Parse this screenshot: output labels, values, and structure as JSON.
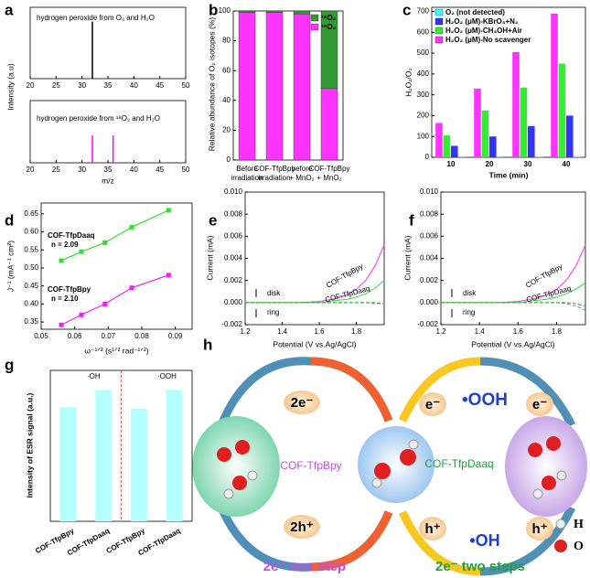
{
  "chart_data": [
    {
      "panel": "a",
      "type": "stem",
      "ylabel": "Intensity (a.u)",
      "annotation": "hydrogen peroxide from O₂ and H₂O",
      "annotation_color": "#000000",
      "color": "#000000",
      "x": [
        32,
        40
      ],
      "values": [
        1,
        0.03
      ],
      "xlim": [
        20,
        50
      ],
      "xticks": [
        20,
        25,
        30,
        35,
        40,
        45,
        50
      ],
      "ylim": [
        0,
        1.25
      ]
    },
    {
      "type": "stem",
      "xlabel": "m/z",
      "annotation": "hydrogen peroxide from ¹⁸O₂ and H₂O",
      "annotation_color": "#e020e0",
      "color": "#ff00ff",
      "x": [
        32,
        36
      ],
      "values": [
        0.55,
        0.55
      ],
      "xlim": [
        20,
        50
      ],
      "xticks": [
        20,
        25,
        30,
        35,
        40,
        45,
        50
      ],
      "ylim": [
        0,
        1.25
      ]
    },
    {
      "panel": "b",
      "type": "stacked_bar",
      "ylabel": "Relative abundance of O₂ isotopes (%)",
      "categories": [
        [
          "Before",
          "irradiation"
        ],
        [
          "COF-TfpBpy",
          "irradiation"
        ],
        [
          "before",
          "+ MnO₂"
        ],
        [
          "COF-TfpBpy",
          "+ MnO₂"
        ]
      ],
      "series": [
        {
          "name": "¹⁶O₂",
          "color": "#ff33ff",
          "values": [
            99,
            99,
            98,
            48
          ]
        },
        {
          "name": "¹⁸O₂",
          "color": "#339933",
          "values": [
            1,
            1,
            2,
            52
          ]
        }
      ],
      "ylim": [
        0,
        100
      ],
      "yticks": [
        0,
        20,
        40,
        60,
        80,
        100
      ],
      "legend": "upper-right"
    },
    {
      "panel": "c",
      "type": "grouped_bar",
      "ylabel": "H₂O₂/O₂",
      "xlabel": "Time (min)",
      "categories": [
        "10",
        "20",
        "30",
        "40"
      ],
      "series": [
        {
          "name": "H₂O₂ (μM)-No scavenger",
          "color": "#ff33ff",
          "values": [
            165,
            330,
            505,
            690
          ]
        },
        {
          "name": "H₂O₂ (μM)-CH₃OH+Air",
          "color": "#33ee33",
          "values": [
            105,
            225,
            335,
            450
          ]
        },
        {
          "name": "H₂O₂ (μM)-KBrO₃+N₂",
          "color": "#3333ff",
          "values": [
            55,
            100,
            150,
            200
          ]
        },
        {
          "name": "O₂ (not detected)",
          "color": "#33ffff",
          "values": [
            5,
            5,
            5,
            5
          ]
        }
      ],
      "ylim": [
        0,
        720
      ],
      "yticks": [
        0,
        100,
        200,
        300,
        400,
        500,
        600,
        700
      ],
      "legend": "upper-left"
    },
    {
      "panel": "d",
      "type": "scatter_line",
      "xlabel": "ω⁻¹ᐟ² (s¹ᐟ² rad⁻¹ᐟ²)",
      "ylabel": "J⁻¹ (mA⁻¹ cm²)",
      "x": [
        0.056,
        0.062,
        0.069,
        0.077,
        0.088
      ],
      "series": [
        {
          "name": "COF-TfpDaaq",
          "note": "n = 2.09",
          "color": "#33dd33",
          "values": [
            0.52,
            0.545,
            0.57,
            0.613,
            0.66
          ]
        },
        {
          "name": "COF-TfpBpy",
          "note": "n = 2.10",
          "color": "#ee22ee",
          "values": [
            0.342,
            0.37,
            0.4,
            0.445,
            0.48
          ]
        }
      ],
      "xlim": [
        0.05,
        0.095
      ],
      "xticks": [
        0.05,
        0.06,
        0.07,
        0.08,
        0.09
      ],
      "ylim": [
        0.33,
        0.68
      ],
      "yticks": [
        0.35,
        {
          "value": 0.4,
          "label": "0.40"
        },
        0.45,
        {
          "value": 0.5,
          "label": "0.50"
        },
        0.55,
        {
          "value": 0.6,
          "label": "0.60"
        },
        0.65
      ]
    },
    {
      "panel": "e",
      "type": "line",
      "xlabel": "Potential (V vs.Ag/AgCl)",
      "ylabel": "Current (mA)",
      "annotations": [
        "disk",
        "ring"
      ],
      "x": [
        1.2,
        1.3,
        1.4,
        1.5,
        1.6,
        1.7,
        1.75,
        1.8,
        1.85,
        1.9,
        1.95
      ],
      "series": [
        {
          "name": "COF-TfpBpy",
          "color": "#ff33ff",
          "values": [
            0,
            0,
            0,
            0,
            0.0001,
            0.0004,
            0.0007,
            0.0012,
            0.002,
            0.0033,
            0.0052
          ]
        },
        {
          "name": "COF-TfpDaaq",
          "color": "#33dd33",
          "values": [
            0,
            0,
            0,
            0,
            0,
            0.0002,
            0.0003,
            0.0005,
            0.0008,
            0.0013,
            0.002
          ]
        },
        {
          "color": "#888888",
          "dash": true,
          "values": [
            0,
            0,
            0,
            0,
            0,
            0,
            0,
            0,
            0,
            -0.0001,
            -0.0001
          ]
        },
        {
          "color": "#33aa33",
          "dash": true,
          "values": [
            0,
            0,
            0,
            0,
            0,
            0,
            0,
            0,
            0,
            0,
            -0.0001
          ]
        }
      ],
      "xlim": [
        1.2,
        1.95
      ],
      "xticks": [
        1.2,
        1.4,
        1.6,
        1.8
      ],
      "ylim": [
        -0.002,
        0.01
      ],
      "yticks": [
        -0.002,
        {
          "value": 0,
          "label": "0.000"
        },
        0.002,
        0.004,
        0.006,
        0.008,
        {
          "value": 0.01,
          "label": "0.010"
        }
      ]
    },
    {
      "panel": "f",
      "type": "line",
      "xlabel": "Potential (V vs.Ag/AgCl)",
      "ylabel": "Current (mA)",
      "annotations": [
        "disk",
        "ring"
      ],
      "x": [
        1.2,
        1.3,
        1.4,
        1.5,
        1.6,
        1.7,
        1.75,
        1.8,
        1.85,
        1.9,
        1.95
      ],
      "series": [
        {
          "name": "COF-TfpBpy",
          "color": "#ff33ff",
          "values": [
            0,
            0,
            0,
            0,
            0.0001,
            0.0004,
            0.0007,
            0.0012,
            0.002,
            0.0033,
            0.0052
          ]
        },
        {
          "name": "COF-TfpDaaq",
          "color": "#33dd33",
          "values": [
            0,
            0,
            0,
            0,
            0,
            0.0002,
            0.0003,
            0.0005,
            0.0008,
            0.0012,
            0.0018
          ]
        },
        {
          "color": "#888888",
          "dash": true,
          "values": [
            0,
            0,
            0,
            0,
            0,
            0,
            0,
            0,
            -0.0001,
            -0.0003,
            -0.0007
          ]
        },
        {
          "color": "#33aa33",
          "dash": true,
          "values": [
            0,
            0,
            0,
            0,
            0,
            0,
            0,
            0,
            0,
            -0.0001,
            -0.0003
          ]
        }
      ],
      "xlim": [
        1.2,
        1.95
      ],
      "xticks": [
        1.2,
        1.4,
        1.6,
        1.8
      ],
      "ylim": [
        -0.002,
        0.01
      ],
      "yticks": [
        -0.002,
        {
          "value": 0,
          "label": "0.000"
        },
        0.002,
        0.004,
        0.006,
        0.008,
        {
          "value": 0.01,
          "label": "0.010"
        }
      ]
    },
    {
      "panel": "g",
      "type": "bar",
      "ylabel": "Intensity of ESR signal (a.u.)",
      "annotations": [
        "·OH",
        "·OOH"
      ],
      "categories": [
        "COF-TfpBpy",
        "COF-TfpDaaq",
        "COF-TfpBpy",
        "COF-TfpDaaq"
      ],
      "category_colors": [
        "#ee2222",
        "#22cc22",
        "#ee2222",
        "#22cc22"
      ],
      "color": "#b3ffff",
      "values": [
        87,
        100,
        86,
        100
      ],
      "ylim": [
        0,
        115
      ]
    }
  ],
  "diagram": {
    "panel": "h",
    "left_top": "2e⁻",
    "left_bottom": "2h⁺",
    "left_label": "COF-TfpBpy",
    "right_label": "COF-TfpDaaq",
    "right_top": [
      "e⁻",
      "•OOH",
      "e⁻"
    ],
    "right_bottom": [
      "h⁺",
      "•OH",
      "h⁺"
    ],
    "key": [
      "H",
      "O"
    ],
    "left_caption": "2e⁻ one step",
    "right_caption": "2e⁻ two steps"
  }
}
